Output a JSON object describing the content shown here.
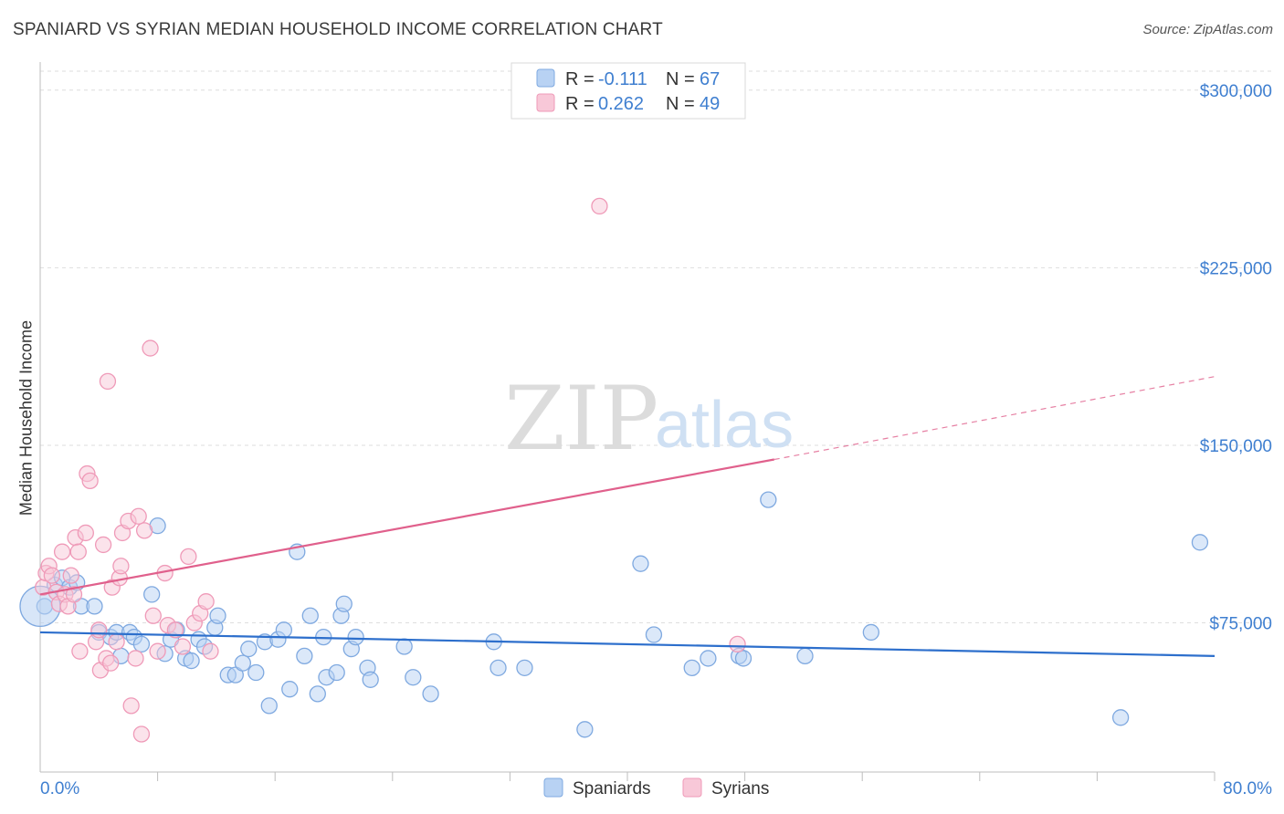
{
  "title": "SPANIARD VS SYRIAN MEDIAN HOUSEHOLD INCOME CORRELATION CHART",
  "source": "Source: ZipAtlas.com",
  "watermark": {
    "zip": "ZIP",
    "atlas": "atlas"
  },
  "colors": {
    "blue": "#3f7fd0",
    "blue_fill": "#b8d2f3",
    "blue_stroke": "#7fa9e0",
    "blue_line": "#2d6fcc",
    "pink": "#e8709a",
    "pink_fill": "#f8c8d8",
    "pink_stroke": "#ef9ab8",
    "pink_line": "#e0608c"
  },
  "legend": {
    "rows": [
      {
        "r_label": "R = ",
        "r_value": "-0.111",
        "n_label": "N = ",
        "n_value": "67",
        "series": "Spaniards"
      },
      {
        "r_label": "R = ",
        "r_value": "0.262",
        "n_label": "N = ",
        "n_value": "49",
        "series": "Syrians"
      }
    ]
  },
  "chart_data": {
    "type": "scatter",
    "title": "SPANIARD VS SYRIAN MEDIAN HOUSEHOLD INCOME CORRELATION CHART",
    "xlabel": "",
    "ylabel": "Median Household Income",
    "xlim": [
      0,
      80
    ],
    "ylim": [
      12000,
      308000
    ],
    "x_tick_labels": [
      "0.0%",
      "80.0%"
    ],
    "y_ticks": [
      75000,
      150000,
      225000,
      300000
    ],
    "y_tick_labels": [
      "$75,000",
      "$150,000",
      "$225,000",
      "$300,000"
    ],
    "series": [
      {
        "name": "Spaniards",
        "color": "blue",
        "trend": {
          "x0": 0,
          "y0": 71000,
          "x1": 80,
          "y1": 61000
        },
        "points": [
          [
            0.3,
            82000
          ],
          [
            1.0,
            91000
          ],
          [
            1.5,
            94000
          ],
          [
            2.0,
            90000
          ],
          [
            2.5,
            92000
          ],
          [
            2.8,
            82000
          ],
          [
            3.7,
            82000
          ],
          [
            4.0,
            71000
          ],
          [
            4.8,
            69000
          ],
          [
            5.2,
            71000
          ],
          [
            5.5,
            61000
          ],
          [
            6.1,
            71000
          ],
          [
            6.4,
            69000
          ],
          [
            6.9,
            66000
          ],
          [
            7.6,
            87000
          ],
          [
            8.0,
            116000
          ],
          [
            8.5,
            62000
          ],
          [
            8.9,
            68000
          ],
          [
            9.3,
            72000
          ],
          [
            9.9,
            60000
          ],
          [
            10.3,
            59000
          ],
          [
            10.8,
            68000
          ],
          [
            11.2,
            65000
          ],
          [
            11.9,
            73000
          ],
          [
            12.1,
            78000
          ],
          [
            12.8,
            53000
          ],
          [
            13.3,
            53000
          ],
          [
            13.8,
            58000
          ],
          [
            14.2,
            64000
          ],
          [
            14.7,
            54000
          ],
          [
            15.3,
            67000
          ],
          [
            15.6,
            40000
          ],
          [
            16.2,
            68000
          ],
          [
            16.6,
            72000
          ],
          [
            17.0,
            47000
          ],
          [
            17.5,
            105000
          ],
          [
            18.0,
            61000
          ],
          [
            18.4,
            78000
          ],
          [
            18.9,
            45000
          ],
          [
            19.3,
            69000
          ],
          [
            19.5,
            52000
          ],
          [
            20.2,
            54000
          ],
          [
            20.5,
            78000
          ],
          [
            20.7,
            83000
          ],
          [
            21.2,
            64000
          ],
          [
            21.5,
            69000
          ],
          [
            22.3,
            56000
          ],
          [
            22.5,
            51000
          ],
          [
            24.8,
            65000
          ],
          [
            25.4,
            52000
          ],
          [
            26.6,
            45000
          ],
          [
            30.9,
            67000
          ],
          [
            31.2,
            56000
          ],
          [
            33.0,
            56000
          ],
          [
            37.1,
            30000
          ],
          [
            40.9,
            100000
          ],
          [
            41.8,
            70000
          ],
          [
            44.4,
            56000
          ],
          [
            45.5,
            60000
          ],
          [
            47.6,
            61000
          ],
          [
            47.9,
            60000
          ],
          [
            49.6,
            127000
          ],
          [
            52.1,
            61000
          ],
          [
            56.6,
            71000
          ],
          [
            73.6,
            35000
          ],
          [
            79.0,
            109000
          ],
          [
            0.0,
            82000
          ]
        ]
      },
      {
        "name": "Syrians",
        "color": "pink",
        "trend": {
          "x0": 0,
          "y0": 87000,
          "x1": 50,
          "y1": 144000,
          "dash_x1": 80,
          "dash_y1": 179000
        },
        "points": [
          [
            0.2,
            90000
          ],
          [
            0.4,
            96000
          ],
          [
            0.6,
            99000
          ],
          [
            0.8,
            95000
          ],
          [
            1.1,
            88000
          ],
          [
            1.3,
            83000
          ],
          [
            1.5,
            105000
          ],
          [
            1.7,
            87000
          ],
          [
            1.9,
            82000
          ],
          [
            2.1,
            95000
          ],
          [
            2.3,
            87000
          ],
          [
            2.4,
            111000
          ],
          [
            2.6,
            105000
          ],
          [
            2.7,
            63000
          ],
          [
            3.1,
            113000
          ],
          [
            3.2,
            138000
          ],
          [
            3.4,
            135000
          ],
          [
            3.8,
            67000
          ],
          [
            4.0,
            72000
          ],
          [
            4.1,
            55000
          ],
          [
            4.3,
            108000
          ],
          [
            4.5,
            60000
          ],
          [
            4.6,
            177000
          ],
          [
            4.8,
            58000
          ],
          [
            4.9,
            90000
          ],
          [
            5.2,
            67000
          ],
          [
            5.4,
            94000
          ],
          [
            5.5,
            99000
          ],
          [
            5.6,
            113000
          ],
          [
            6.0,
            118000
          ],
          [
            6.2,
            40000
          ],
          [
            6.5,
            60000
          ],
          [
            6.7,
            120000
          ],
          [
            6.9,
            28000
          ],
          [
            7.1,
            114000
          ],
          [
            7.5,
            191000
          ],
          [
            7.7,
            78000
          ],
          [
            8.0,
            63000
          ],
          [
            8.5,
            96000
          ],
          [
            8.7,
            74000
          ],
          [
            9.2,
            72000
          ],
          [
            9.7,
            65000
          ],
          [
            10.1,
            103000
          ],
          [
            10.5,
            75000
          ],
          [
            10.9,
            79000
          ],
          [
            11.3,
            84000
          ],
          [
            11.6,
            63000
          ],
          [
            38.1,
            251000
          ],
          [
            47.5,
            66000
          ]
        ]
      }
    ]
  }
}
